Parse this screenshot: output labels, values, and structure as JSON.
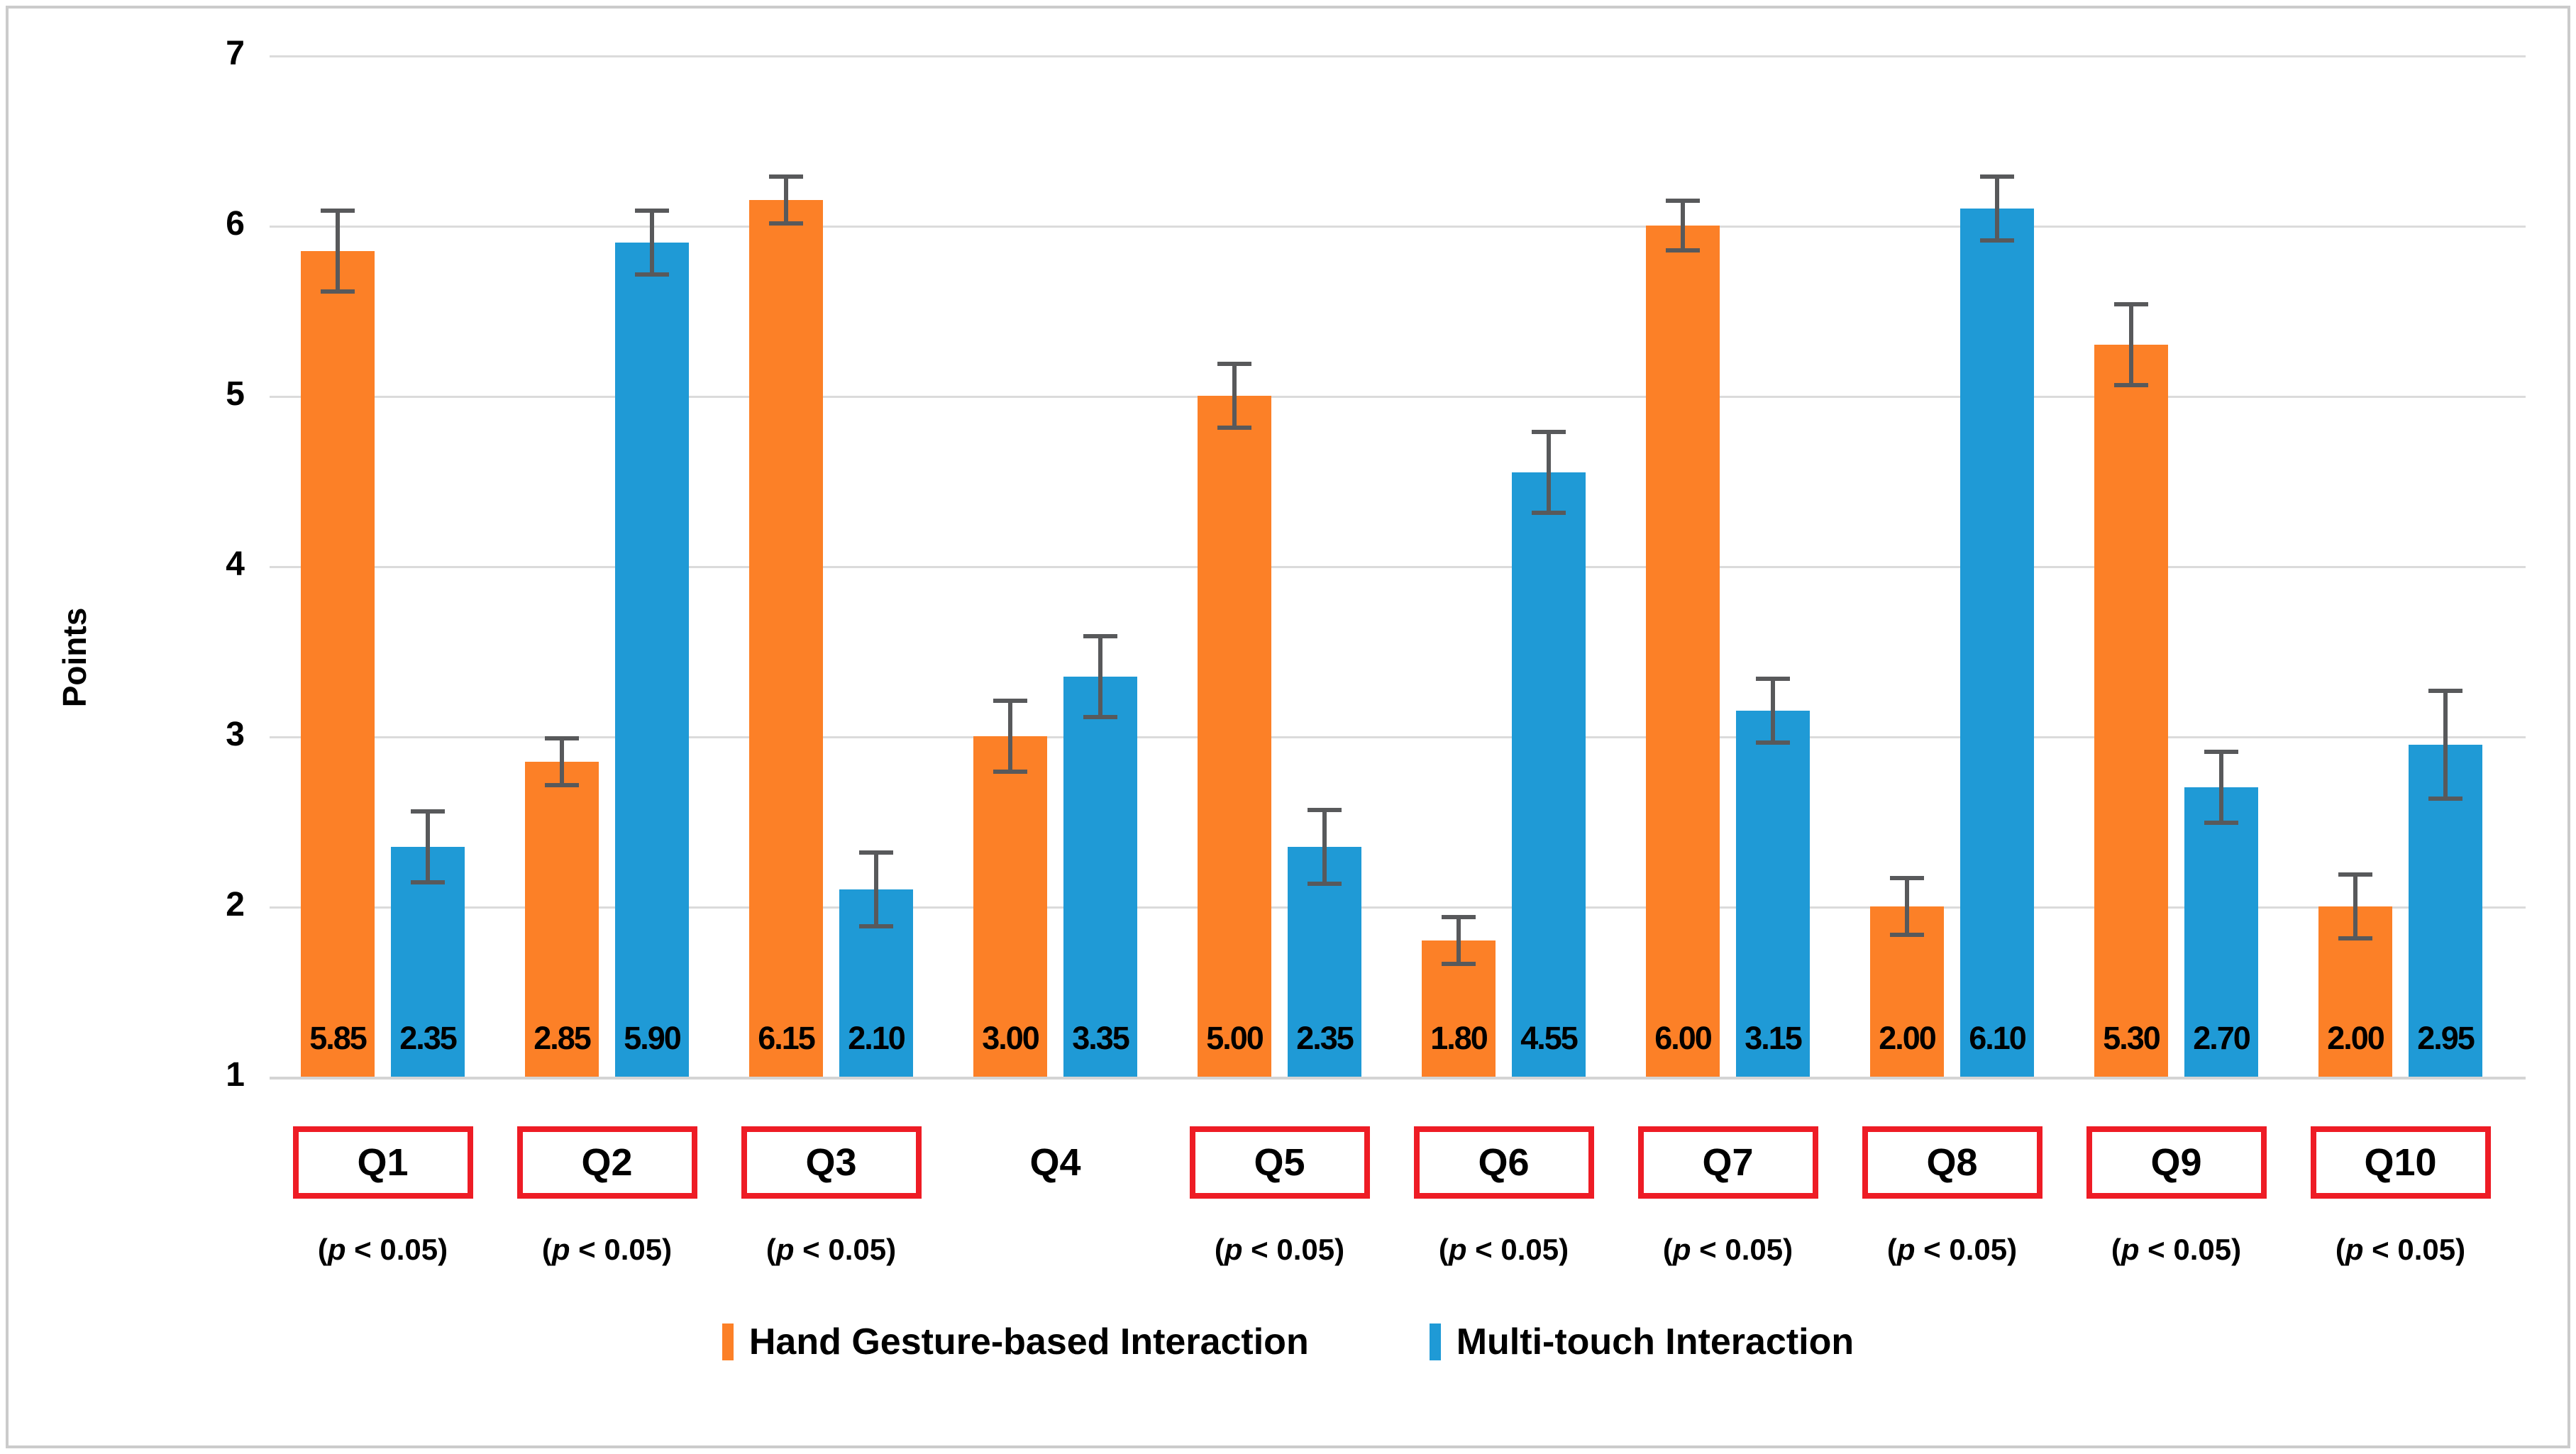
{
  "chart_data": {
    "type": "bar",
    "title": "",
    "xlabel": "",
    "ylabel": "Points",
    "ylim": [
      1,
      7
    ],
    "yticks": [
      7,
      6,
      5,
      4,
      3,
      2,
      1
    ],
    "grid": true,
    "legend_position": "bottom",
    "categories": [
      "Q1",
      "Q2",
      "Q3",
      "Q4",
      "Q5",
      "Q6",
      "Q7",
      "Q8",
      "Q9",
      "Q10"
    ],
    "series": [
      {
        "name": "Hand Gesture-based Interaction",
        "color": "#fc8027",
        "values": [
          5.85,
          2.85,
          6.15,
          3.0,
          5.0,
          1.8,
          6.0,
          2.0,
          5.3,
          2.0
        ],
        "errors": [
          0.25,
          0.15,
          0.15,
          0.22,
          0.2,
          0.15,
          0.16,
          0.18,
          0.25,
          0.2
        ]
      },
      {
        "name": "Multi-touch Interaction",
        "color": "#1f9ad6",
        "values": [
          2.35,
          5.9,
          2.1,
          3.35,
          2.35,
          4.55,
          3.15,
          6.1,
          2.7,
          2.95
        ],
        "errors": [
          0.22,
          0.2,
          0.23,
          0.25,
          0.23,
          0.25,
          0.2,
          0.2,
          0.22,
          0.33
        ]
      }
    ],
    "significant": [
      true,
      true,
      true,
      false,
      true,
      true,
      true,
      true,
      true,
      true
    ],
    "significance_label": {
      "open": "(",
      "var": "p",
      "rest": " < 0.05)"
    },
    "colors": {
      "gridline": "#dbdbdb",
      "error_bar": "#58595b",
      "significance_box": "#ee1c25",
      "text": "#000000",
      "frame": "#cbcbcb"
    }
  }
}
